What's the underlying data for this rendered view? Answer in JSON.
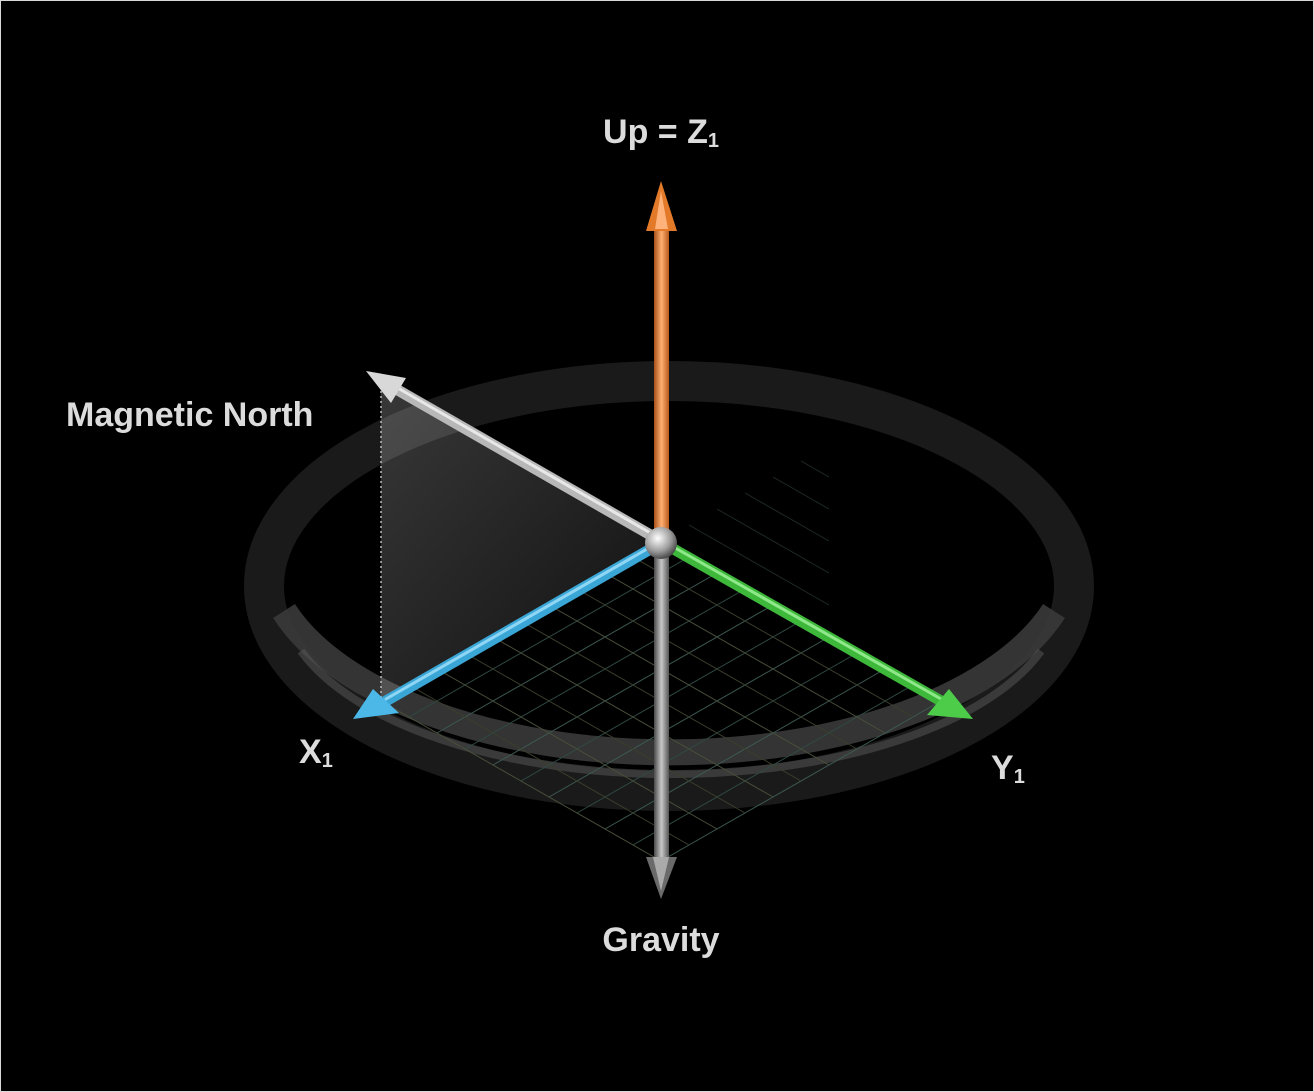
{
  "labels": {
    "up": "Up = Z",
    "up_sub": "1",
    "magnetic_north": "Magnetic North",
    "x_axis": "X",
    "x_sub": "1",
    "y_axis": "Y",
    "y_sub": "1",
    "gravity": "Gravity"
  },
  "colors": {
    "up_arrow": "#f08a3c",
    "x_arrow": "#3aa6d6",
    "y_arrow": "#3db83a",
    "north_arrow": "#c8c8c8",
    "gravity_arrow": "#9a9a9a",
    "background": "#000000"
  }
}
